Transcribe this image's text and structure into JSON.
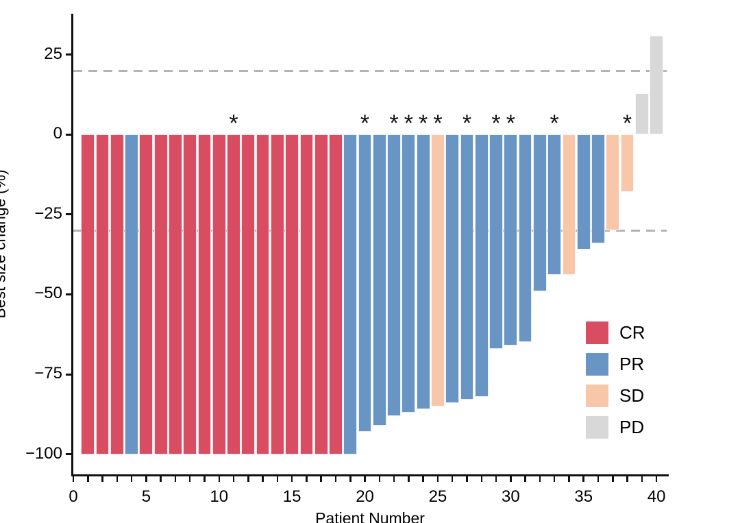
{
  "chart_data": {
    "type": "bar",
    "title": "",
    "xlabel": "Patient Number",
    "ylabel": "Best size change (%)",
    "x_ticks": [
      0,
      5,
      10,
      15,
      20,
      25,
      30,
      35,
      40
    ],
    "x_minor_tick_step": 1,
    "y_ticks": [
      25,
      0,
      -25,
      -50,
      -75,
      -100
    ],
    "xlim": [
      0,
      40.7
    ],
    "ylim": [
      -106.3,
      37.8
    ],
    "grid": "off",
    "reference_lines": [
      {
        "y": 20,
        "style": "dashed",
        "color": "#b4b4b4"
      },
      {
        "y": -30,
        "style": "dashed",
        "color": "#b4b4b4"
      }
    ],
    "annotation_symbol": "*",
    "legend": {
      "position": "inside-right",
      "items": [
        {
          "label": "CR",
          "color": "#d94d62"
        },
        {
          "label": "PR",
          "color": "#6895c3"
        },
        {
          "label": "SD",
          "color": "#f8c7aa"
        },
        {
          "label": "PD",
          "color": "#d8d8d8"
        }
      ]
    },
    "patients": [
      {
        "patient": 1,
        "value": -100,
        "response": "CR",
        "asterisk": false
      },
      {
        "patient": 2,
        "value": -100,
        "response": "CR",
        "asterisk": false
      },
      {
        "patient": 3,
        "value": -100,
        "response": "CR",
        "asterisk": false
      },
      {
        "patient": 4,
        "value": -100,
        "response": "PR",
        "asterisk": false
      },
      {
        "patient": 5,
        "value": -100,
        "response": "CR",
        "asterisk": false
      },
      {
        "patient": 6,
        "value": -100,
        "response": "CR",
        "asterisk": false
      },
      {
        "patient": 7,
        "value": -100,
        "response": "CR",
        "asterisk": false
      },
      {
        "patient": 8,
        "value": -100,
        "response": "CR",
        "asterisk": false
      },
      {
        "patient": 9,
        "value": -100,
        "response": "CR",
        "asterisk": false
      },
      {
        "patient": 10,
        "value": -100,
        "response": "CR",
        "asterisk": false
      },
      {
        "patient": 11,
        "value": -100,
        "response": "CR",
        "asterisk": true
      },
      {
        "patient": 12,
        "value": -100,
        "response": "CR",
        "asterisk": false
      },
      {
        "patient": 13,
        "value": -100,
        "response": "CR",
        "asterisk": false
      },
      {
        "patient": 14,
        "value": -100,
        "response": "CR",
        "asterisk": false
      },
      {
        "patient": 15,
        "value": -100,
        "response": "CR",
        "asterisk": false
      },
      {
        "patient": 16,
        "value": -100,
        "response": "CR",
        "asterisk": false
      },
      {
        "patient": 17,
        "value": -100,
        "response": "CR",
        "asterisk": false
      },
      {
        "patient": 18,
        "value": -100,
        "response": "CR",
        "asterisk": false
      },
      {
        "patient": 19,
        "value": -100,
        "response": "PR",
        "asterisk": false
      },
      {
        "patient": 20,
        "value": -93,
        "response": "PR",
        "asterisk": true
      },
      {
        "patient": 21,
        "value": -91,
        "response": "PR",
        "asterisk": false
      },
      {
        "patient": 22,
        "value": -88,
        "response": "PR",
        "asterisk": true
      },
      {
        "patient": 23,
        "value": -87,
        "response": "PR",
        "asterisk": true
      },
      {
        "patient": 24,
        "value": -86,
        "response": "PR",
        "asterisk": true
      },
      {
        "patient": 25,
        "value": -85,
        "response": "SD",
        "asterisk": true
      },
      {
        "patient": 26,
        "value": -84,
        "response": "PR",
        "asterisk": false
      },
      {
        "patient": 27,
        "value": -83,
        "response": "PR",
        "asterisk": true
      },
      {
        "patient": 28,
        "value": -82,
        "response": "PR",
        "asterisk": false
      },
      {
        "patient": 29,
        "value": -67,
        "response": "PR",
        "asterisk": true
      },
      {
        "patient": 30,
        "value": -66,
        "response": "PR",
        "asterisk": true
      },
      {
        "patient": 31,
        "value": -65,
        "response": "PR",
        "asterisk": false
      },
      {
        "patient": 32,
        "value": -49,
        "response": "PR",
        "asterisk": false
      },
      {
        "patient": 33,
        "value": -44,
        "response": "PR",
        "asterisk": true
      },
      {
        "patient": 34,
        "value": -44,
        "response": "SD",
        "asterisk": false
      },
      {
        "patient": 35,
        "value": -36,
        "response": "PR",
        "asterisk": false
      },
      {
        "patient": 36,
        "value": -34,
        "response": "PR",
        "asterisk": false
      },
      {
        "patient": 37,
        "value": -30,
        "response": "SD",
        "asterisk": false
      },
      {
        "patient": 38,
        "value": -18,
        "response": "SD",
        "asterisk": true
      },
      {
        "patient": 39,
        "value": 13,
        "response": "PD",
        "asterisk": false
      },
      {
        "patient": 40,
        "value": 31,
        "response": "PD",
        "asterisk": false
      }
    ]
  }
}
